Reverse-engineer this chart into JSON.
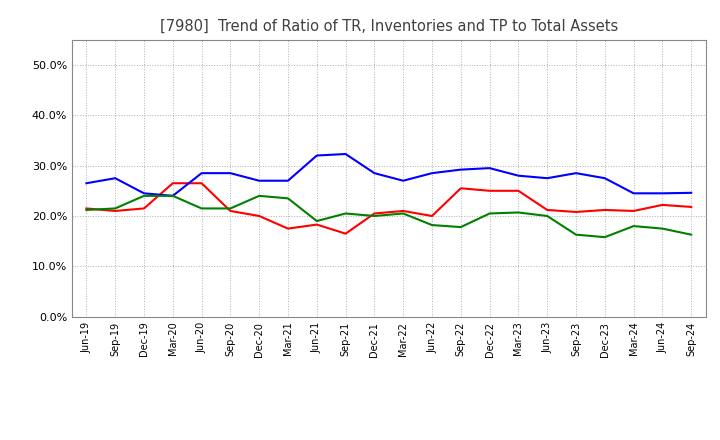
{
  "title": "[7980]  Trend of Ratio of TR, Inventories and TP to Total Assets",
  "x_labels": [
    "Jun-19",
    "Sep-19",
    "Dec-19",
    "Mar-20",
    "Jun-20",
    "Sep-20",
    "Dec-20",
    "Mar-21",
    "Jun-21",
    "Sep-21",
    "Dec-21",
    "Mar-22",
    "Jun-22",
    "Sep-22",
    "Dec-22",
    "Mar-23",
    "Jun-23",
    "Sep-23",
    "Dec-23",
    "Mar-24",
    "Jun-24",
    "Sep-24"
  ],
  "trade_receivables": [
    0.215,
    0.21,
    0.215,
    0.265,
    0.265,
    0.21,
    0.2,
    0.175,
    0.183,
    0.165,
    0.205,
    0.21,
    0.2,
    0.255,
    0.25,
    0.25,
    0.212,
    0.208,
    0.212,
    0.21,
    0.222,
    0.218
  ],
  "inventories": [
    0.265,
    0.275,
    0.245,
    0.24,
    0.285,
    0.285,
    0.27,
    0.27,
    0.32,
    0.323,
    0.285,
    0.27,
    0.285,
    0.292,
    0.295,
    0.28,
    0.275,
    0.285,
    0.275,
    0.245,
    0.245,
    0.246
  ],
  "trade_payables": [
    0.212,
    0.215,
    0.24,
    0.24,
    0.215,
    0.215,
    0.24,
    0.235,
    0.19,
    0.205,
    0.2,
    0.205,
    0.182,
    0.178,
    0.205,
    0.207,
    0.2,
    0.163,
    0.158,
    0.18,
    0.175,
    0.163
  ],
  "tr_color": "#ff0000",
  "inv_color": "#0000ff",
  "tp_color": "#008000",
  "bg_color": "#ffffff",
  "grid_color": "#b0b0b0",
  "ylim": [
    0.0,
    0.55
  ],
  "yticks": [
    0.0,
    0.1,
    0.2,
    0.3,
    0.4,
    0.5
  ]
}
